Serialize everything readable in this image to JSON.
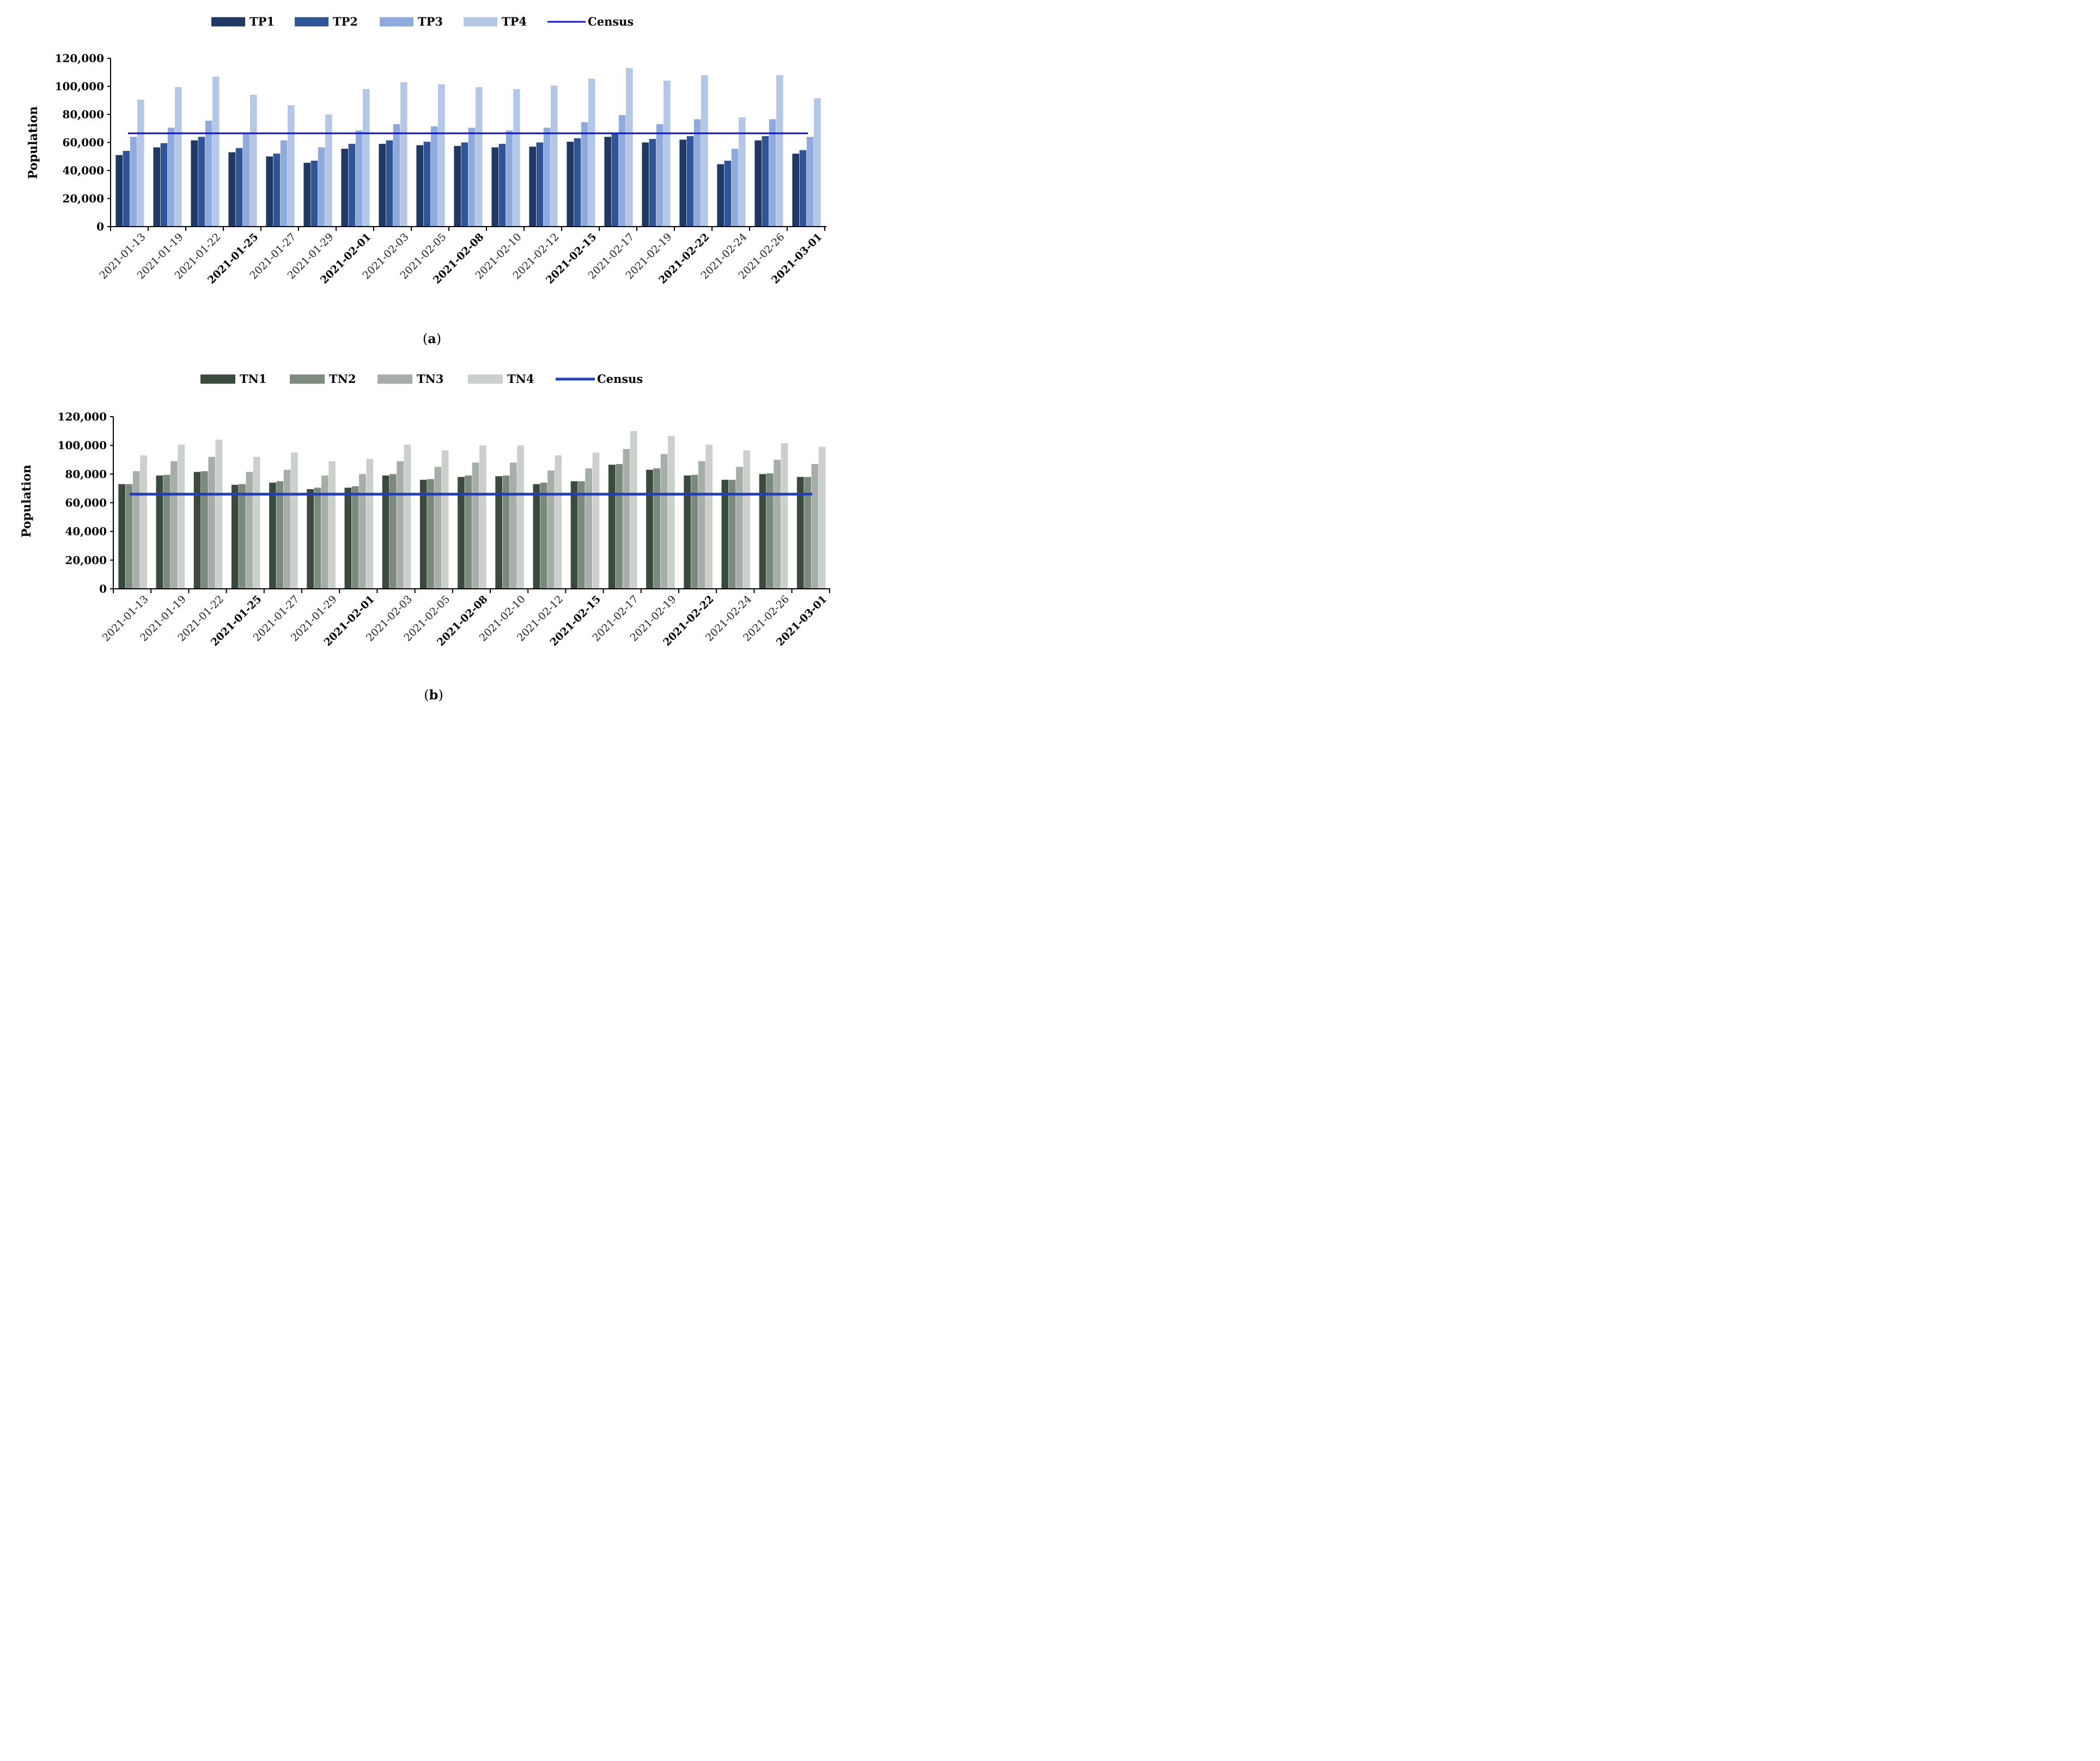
{
  "chart_data": [
    {
      "type": "bar",
      "panel_label": "a",
      "ylabel": "Population",
      "ylim": [
        0,
        120000
      ],
      "yticks": [
        0,
        20000,
        40000,
        60000,
        80000,
        100000,
        120000
      ],
      "ytick_labels": [
        "0",
        "20,000",
        "40,000",
        "60,000",
        "80,000",
        "100,000",
        "120,000"
      ],
      "legend_position": "top-center",
      "categories": [
        "2021-01-13",
        "2021-01-19",
        "2021-01-22",
        "2021-01-25",
        "2021-01-27",
        "2021-01-29",
        "2021-02-01",
        "2021-02-03",
        "2021-02-05",
        "2021-02-08",
        "2021-02-10",
        "2021-02-12",
        "2021-02-15",
        "2021-02-17",
        "2021-02-19",
        "2021-02-22",
        "2021-02-24",
        "2021-02-26",
        "2021-03-01"
      ],
      "bold_categories": [
        "2021-01-25",
        "2021-02-01",
        "2021-02-08",
        "2021-02-15",
        "2021-02-22",
        "2021-03-01"
      ],
      "series": [
        {
          "name": "TP1",
          "color": "#1f3864",
          "values": [
            51000,
            56500,
            61500,
            53000,
            50000,
            45500,
            55500,
            59000,
            58000,
            57500,
            56500,
            57000,
            60500,
            64000,
            60000,
            62000,
            44500,
            61500,
            52000
          ]
        },
        {
          "name": "TP2",
          "color": "#2f5597",
          "values": [
            54000,
            59500,
            64000,
            56000,
            52000,
            47000,
            59000,
            61500,
            60500,
            60000,
            59000,
            60000,
            63000,
            66500,
            62500,
            64500,
            47000,
            64500,
            54500
          ]
        },
        {
          "name": "TP3",
          "color": "#8faadc",
          "values": [
            64000,
            70500,
            75500,
            66000,
            61500,
            56500,
            68500,
            73000,
            71500,
            70500,
            68500,
            70500,
            74500,
            79500,
            73000,
            76500,
            55500,
            76500,
            64000
          ]
        },
        {
          "name": "TP4",
          "color": "#b4c7e7",
          "values": [
            90500,
            99500,
            107000,
            94000,
            86500,
            80000,
            98000,
            103000,
            101500,
            99500,
            98000,
            100500,
            105500,
            113000,
            104000,
            108000,
            78000,
            108000,
            91500
          ]
        }
      ],
      "reference_line": {
        "name": "Census",
        "value": 66500,
        "color": "#1010e0"
      }
    },
    {
      "type": "bar",
      "panel_label": "b",
      "ylabel": "Population",
      "ylim": [
        0,
        120000
      ],
      "yticks": [
        0,
        20000,
        40000,
        60000,
        80000,
        100000,
        120000
      ],
      "ytick_labels": [
        "0",
        "20,000",
        "40,000",
        "60,000",
        "80,000",
        "100,000",
        "120,000"
      ],
      "legend_position": "top-center",
      "categories": [
        "2021-01-13",
        "2021-01-19",
        "2021-01-22",
        "2021-01-25",
        "2021-01-27",
        "2021-01-29",
        "2021-02-01",
        "2021-02-03",
        "2021-02-05",
        "2021-02-08",
        "2021-02-10",
        "2021-02-12",
        "2021-02-15",
        "2021-02-17",
        "2021-02-19",
        "2021-02-22",
        "2021-02-24",
        "2021-02-26",
        "2021-03-01"
      ],
      "bold_categories": [
        "2021-01-25",
        "2021-02-01",
        "2021-02-08",
        "2021-02-15",
        "2021-02-22",
        "2021-03-01"
      ],
      "series": [
        {
          "name": "TN1",
          "color": "#3a4a3c",
          "values": [
            73000,
            79000,
            81500,
            72500,
            74000,
            69500,
            70500,
            79000,
            76000,
            78000,
            78500,
            73000,
            75000,
            86500,
            83000,
            79000,
            76000,
            80000,
            78000
          ]
        },
        {
          "name": "TN2",
          "color": "#7c8a7d",
          "values": [
            73000,
            79500,
            82000,
            73000,
            75000,
            70500,
            71500,
            80000,
            76500,
            79000,
            79000,
            74000,
            75000,
            87000,
            84000,
            79500,
            76000,
            80500,
            78000
          ]
        },
        {
          "name": "TN3",
          "color": "#a7ada8",
          "values": [
            82000,
            89000,
            92000,
            81500,
            83000,
            79000,
            80000,
            89000,
            85000,
            88000,
            88000,
            82500,
            84000,
            97500,
            94000,
            89000,
            85000,
            90000,
            87000
          ]
        },
        {
          "name": "TN4",
          "color": "#cbd0cc",
          "values": [
            93000,
            100500,
            104000,
            92000,
            95000,
            89000,
            90500,
            100500,
            96500,
            100000,
            100000,
            93000,
            95000,
            110000,
            106500,
            100500,
            96500,
            101500,
            99000
          ]
        }
      ],
      "reference_line": {
        "name": "Census",
        "value": 66000,
        "color": "#1f3fc0"
      }
    }
  ]
}
